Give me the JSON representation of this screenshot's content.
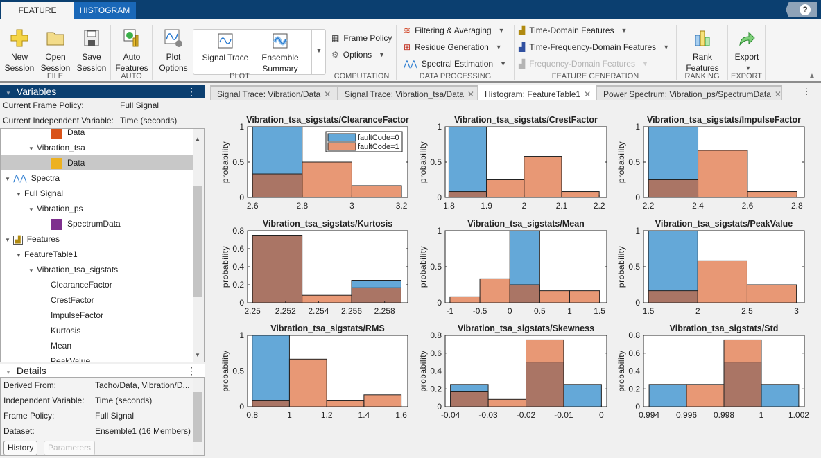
{
  "app_tabs": [
    "FEATURE DESIGNER",
    "HISTOGRAM"
  ],
  "help_label": "?",
  "toolstrip": {
    "file": {
      "label": "FILE",
      "new": "New Session",
      "open": "Open Session",
      "save": "Save Session"
    },
    "auto": {
      "label": "AUTO",
      "auto_features": "Auto Features"
    },
    "plot": {
      "label": "PLOT",
      "plot_options": "Plot Options",
      "signal_trace": "Signal Trace",
      "ensemble_summary": "Ensemble Summary"
    },
    "computation": {
      "label": "COMPUTATION",
      "frame_policy": "Frame Policy",
      "options": "Options"
    },
    "data_processing": {
      "label": "DATA PROCESSING",
      "filtering": "Filtering & Averaging",
      "residue": "Residue Generation",
      "spectral": "Spectral Estimation"
    },
    "feature_generation": {
      "label": "FEATURE GENERATION",
      "time_domain": "Time-Domain Features",
      "time_freq": "Time-Frequency-Domain Features",
      "freq_domain": "Frequency-Domain Features"
    },
    "ranking": {
      "label": "RANKING",
      "rank": "Rank Features"
    },
    "export": {
      "label": "EXPORT",
      "export": "Export"
    }
  },
  "variables": {
    "title": "Variables",
    "frame_policy_label": "Current Frame Policy:",
    "frame_policy_value": "Full Signal",
    "indep_label": "Current Independent Variable:",
    "indep_value": "Time (seconds)",
    "tree": [
      {
        "label": "Data",
        "level": 3,
        "swatch": "#d95319"
      },
      {
        "label": "Vibration_tsa",
        "level": 2,
        "expand": true
      },
      {
        "label": "Data",
        "level": 3,
        "swatch": "#edb120",
        "selected": true
      },
      {
        "label": "Spectra",
        "level": 0,
        "expand": true,
        "icon": "spectrum-icon"
      },
      {
        "label": "Full Signal",
        "level": 1,
        "expand": true
      },
      {
        "label": "Vibration_ps",
        "level": 2,
        "expand": true
      },
      {
        "label": "SpectrumData",
        "level": 3,
        "swatch": "#7e2f8e"
      },
      {
        "label": "Features",
        "level": 0,
        "expand": true,
        "icon": "features-icon"
      },
      {
        "label": "FeatureTable1",
        "level": 1,
        "expand": true
      },
      {
        "label": "Vibration_tsa_sigstats",
        "level": 2,
        "expand": true
      },
      {
        "label": "ClearanceFactor",
        "level": 3
      },
      {
        "label": "CrestFactor",
        "level": 3
      },
      {
        "label": "ImpulseFactor",
        "level": 3
      },
      {
        "label": "Kurtosis",
        "level": 3
      },
      {
        "label": "Mean",
        "level": 3
      },
      {
        "label": "PeakValue",
        "level": 3
      }
    ]
  },
  "details": {
    "title": "Details",
    "rows": [
      {
        "label": "Derived From:",
        "value": "Tacho/Data, Vibration/D..."
      },
      {
        "label": "Independent Variable:",
        "value": "Time (seconds)"
      },
      {
        "label": "Frame Policy:",
        "value": "Full Signal"
      },
      {
        "label": "Dataset:",
        "value": "Ensemble1 (16 Members)"
      }
    ],
    "history": "History",
    "parameters": "Parameters"
  },
  "doc_tabs": [
    {
      "label": "Signal Trace: Vibration/Data"
    },
    {
      "label": "Signal Trace: Vibration_tsa/Data"
    },
    {
      "label": "Histogram: FeatureTable1",
      "active": true
    },
    {
      "label": "Power Spectrum: Vibration_ps/SpectrumData"
    }
  ],
  "colors": {
    "faultCode0": "#64a8d8",
    "faultCode1": "#d95319",
    "header": "#0b3f70"
  },
  "chart_data": [
    {
      "type": "bar",
      "title": "Vibration_tsa_sigstats/ClearanceFactor",
      "ylabel": "probability",
      "edges": [
        2.6,
        2.8,
        3.0,
        3.2
      ],
      "xlim": [
        2.58,
        3.225
      ],
      "ylim": [
        0,
        1
      ],
      "xticks": [
        "2.6",
        "2.8",
        "3",
        "3.2"
      ],
      "yticks": [
        "0",
        "0.5",
        "1"
      ],
      "legend": {
        "position": "top-right",
        "entries": [
          "faultCode=0",
          "faultCode=1"
        ]
      },
      "series": [
        {
          "name": "faultCode=0",
          "values": [
            1,
            0,
            0
          ]
        },
        {
          "name": "faultCode=1",
          "values": [
            0.333,
            0.5,
            0.167
          ]
        }
      ]
    },
    {
      "type": "bar",
      "title": "Vibration_tsa_sigstats/CrestFactor",
      "ylabel": "probability",
      "edges": [
        1.8,
        1.9,
        2.0,
        2.1,
        2.2
      ],
      "xlim": [
        1.79,
        2.22
      ],
      "ylim": [
        0,
        1
      ],
      "xticks": [
        "1.8",
        "1.9",
        "2",
        "2.1",
        "2.2"
      ],
      "yticks": [
        "0",
        "0.5",
        "1"
      ],
      "series": [
        {
          "name": "faultCode=0",
          "values": [
            1,
            0,
            0,
            0
          ]
        },
        {
          "name": "faultCode=1",
          "values": [
            0.083,
            0.25,
            0.583,
            0.083
          ]
        }
      ]
    },
    {
      "type": "bar",
      "title": "Vibration_tsa_sigstats/ImpulseFactor",
      "ylabel": "probability",
      "edges": [
        2.2,
        2.4,
        2.6,
        2.8
      ],
      "xlim": [
        2.18,
        2.83
      ],
      "ylim": [
        0,
        1
      ],
      "xticks": [
        "2.2",
        "2.4",
        "2.6",
        "2.8"
      ],
      "yticks": [
        "0",
        "0.5",
        "1"
      ],
      "series": [
        {
          "name": "faultCode=0",
          "values": [
            1,
            0,
            0
          ]
        },
        {
          "name": "faultCode=1",
          "values": [
            0.25,
            0.667,
            0.083
          ]
        }
      ]
    },
    {
      "type": "bar",
      "title": "Vibration_tsa_sigstats/Kurtosis",
      "ylabel": "probability",
      "edges": [
        2.25,
        2.253,
        2.256,
        2.259
      ],
      "xlim": [
        2.2497,
        2.2594
      ],
      "ylim": [
        0,
        0.8
      ],
      "xticks": [
        "2.25",
        "2.252",
        "2.254",
        "2.256",
        "2.258"
      ],
      "yticks": [
        "0",
        "0.2",
        "0.4",
        "0.6",
        "0.8"
      ],
      "series": [
        {
          "name": "faultCode=0",
          "values": [
            0.75,
            0,
            0.25
          ]
        },
        {
          "name": "faultCode=1",
          "values": [
            0.75,
            0.083,
            0.167
          ]
        }
      ]
    },
    {
      "type": "bar",
      "title": "Vibration_tsa_sigstats/Mean",
      "ylabel": "probability",
      "edges": [
        -1,
        -0.5,
        0,
        0.5,
        1,
        1.5
      ],
      "xlim": [
        -1.08,
        1.62
      ],
      "ylim": [
        0,
        1
      ],
      "xticks": [
        "-1",
        "-0.5",
        "0",
        "0.5",
        "1",
        "1.5"
      ],
      "yticks": [
        "0",
        "0.5",
        "1"
      ],
      "series": [
        {
          "name": "faultCode=0",
          "values": [
            0,
            0,
            1,
            0,
            0
          ]
        },
        {
          "name": "faultCode=1",
          "values": [
            0.083,
            0.333,
            0.25,
            0.167,
            0.167
          ]
        }
      ]
    },
    {
      "type": "bar",
      "title": "Vibration_tsa_sigstats/PeakValue",
      "ylabel": "probability",
      "edges": [
        1.5,
        2.0,
        2.5,
        3.0
      ],
      "xlim": [
        1.45,
        3.08
      ],
      "ylim": [
        0,
        1
      ],
      "xticks": [
        "1.5",
        "2",
        "2.5",
        "3"
      ],
      "yticks": [
        "0",
        "0.5",
        "1"
      ],
      "series": [
        {
          "name": "faultCode=0",
          "values": [
            1,
            0,
            0
          ]
        },
        {
          "name": "faultCode=1",
          "values": [
            0.167,
            0.583,
            0.25
          ]
        }
      ]
    },
    {
      "type": "bar",
      "title": "Vibration_tsa_sigstats/RMS",
      "ylabel": "probability",
      "edges": [
        0.8,
        1.0,
        1.2,
        1.4,
        1.6
      ],
      "xlim": [
        0.775,
        1.635
      ],
      "ylim": [
        0,
        1
      ],
      "xticks": [
        "0.8",
        "1",
        "1.2",
        "1.4",
        "1.6"
      ],
      "yticks": [
        "0",
        "0.5",
        "1"
      ],
      "series": [
        {
          "name": "faultCode=0",
          "values": [
            1,
            0,
            0,
            0
          ]
        },
        {
          "name": "faultCode=1",
          "values": [
            0.083,
            0.667,
            0.083,
            0.167
          ]
        }
      ]
    },
    {
      "type": "bar",
      "title": "Vibration_tsa_sigstats/Skewness",
      "ylabel": "probability",
      "edges": [
        -0.04,
        -0.03,
        -0.02,
        -0.01,
        0
      ],
      "xlim": [
        -0.0414,
        0.0014
      ],
      "ylim": [
        0,
        0.8
      ],
      "xticks": [
        "-0.04",
        "-0.03",
        "-0.02",
        "-0.01",
        "0"
      ],
      "yticks": [
        "0",
        "0.2",
        "0.4",
        "0.6",
        "0.8"
      ],
      "series": [
        {
          "name": "faultCode=0",
          "values": [
            0.25,
            0,
            0.5,
            0.25
          ]
        },
        {
          "name": "faultCode=1",
          "values": [
            0.167,
            0.083,
            0.75,
            0
          ]
        }
      ]
    },
    {
      "type": "bar",
      "title": "Vibration_tsa_sigstats/Std",
      "ylabel": "probability",
      "edges": [
        0.994,
        0.996,
        0.998,
        1.0,
        1.002
      ],
      "xlim": [
        0.9937,
        1.0023
      ],
      "ylim": [
        0,
        0.8
      ],
      "xticks": [
        "0.994",
        "0.996",
        "0.998",
        "1",
        "1.002"
      ],
      "yticks": [
        "0",
        "0.2",
        "0.4",
        "0.6",
        "0.8"
      ],
      "series": [
        {
          "name": "faultCode=0",
          "values": [
            0.25,
            0,
            0.5,
            0.25
          ]
        },
        {
          "name": "faultCode=1",
          "values": [
            0,
            0.25,
            0.75,
            0
          ]
        }
      ]
    }
  ]
}
